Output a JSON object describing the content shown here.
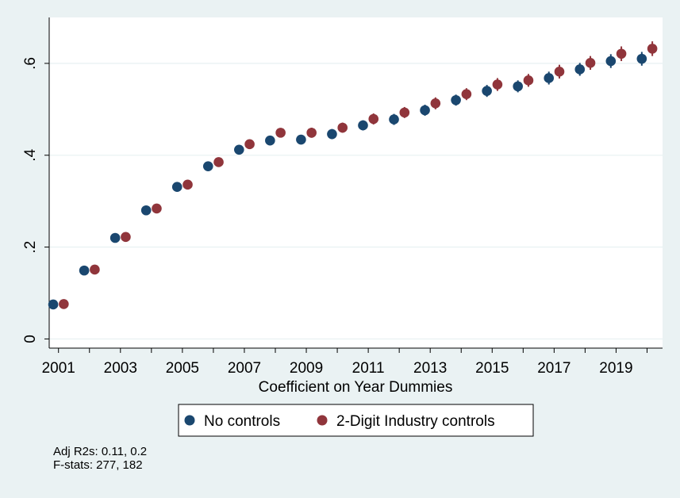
{
  "chart_data": {
    "type": "scatter",
    "title": "",
    "xlabel": "Coefficient on Year Dummies",
    "ylabel": "",
    "x_ticks": [
      "2001",
      "2003",
      "2005",
      "2007",
      "2009",
      "2011",
      "2013",
      "2015",
      "2017",
      "2019"
    ],
    "y_ticks": [
      {
        "value": 0,
        "label": "0"
      },
      {
        "value": 0.2,
        "label": ".2"
      },
      {
        "value": 0.4,
        "label": ".4"
      },
      {
        "value": 0.6,
        "label": ".6"
      }
    ],
    "xlim": [
      2000.7,
      2020.5
    ],
    "ylim": [
      -0.02,
      0.7
    ],
    "grid": true,
    "legend_position": "bottom",
    "x": [
      2001,
      2002,
      2003,
      2004,
      2005,
      2006,
      2007,
      2008,
      2009,
      2010,
      2011,
      2012,
      2013,
      2014,
      2015,
      2016,
      2017,
      2018,
      2019,
      2020
    ],
    "series": [
      {
        "name": "No controls",
        "color": "#1a476f",
        "offset": -0.17,
        "values": [
          0.075,
          0.149,
          0.22,
          0.28,
          0.331,
          0.376,
          0.412,
          0.432,
          0.434,
          0.446,
          0.465,
          0.478,
          0.498,
          0.52,
          0.54,
          0.55,
          0.568,
          0.587,
          0.605,
          0.61
        ],
        "ci_half": [
          0.004,
          0.005,
          0.006,
          0.007,
          0.008,
          0.009,
          0.009,
          0.01,
          0.01,
          0.011,
          0.011,
          0.012,
          0.012,
          0.012,
          0.013,
          0.013,
          0.014,
          0.014,
          0.015,
          0.015
        ]
      },
      {
        "name": "2-Digit Industry controls",
        "color": "#90353b",
        "offset": 0.17,
        "values": [
          0.076,
          0.151,
          0.222,
          0.284,
          0.336,
          0.385,
          0.424,
          0.449,
          0.449,
          0.46,
          0.479,
          0.493,
          0.513,
          0.533,
          0.554,
          0.563,
          0.582,
          0.601,
          0.621,
          0.632
        ],
        "ci_half": [
          0.004,
          0.005,
          0.006,
          0.007,
          0.008,
          0.009,
          0.01,
          0.01,
          0.011,
          0.011,
          0.012,
          0.012,
          0.013,
          0.013,
          0.014,
          0.014,
          0.015,
          0.015,
          0.016,
          0.016
        ]
      }
    ],
    "notes": [
      "Adj R2s: 0.11, 0.2",
      "F-stats: 277, 182"
    ]
  }
}
